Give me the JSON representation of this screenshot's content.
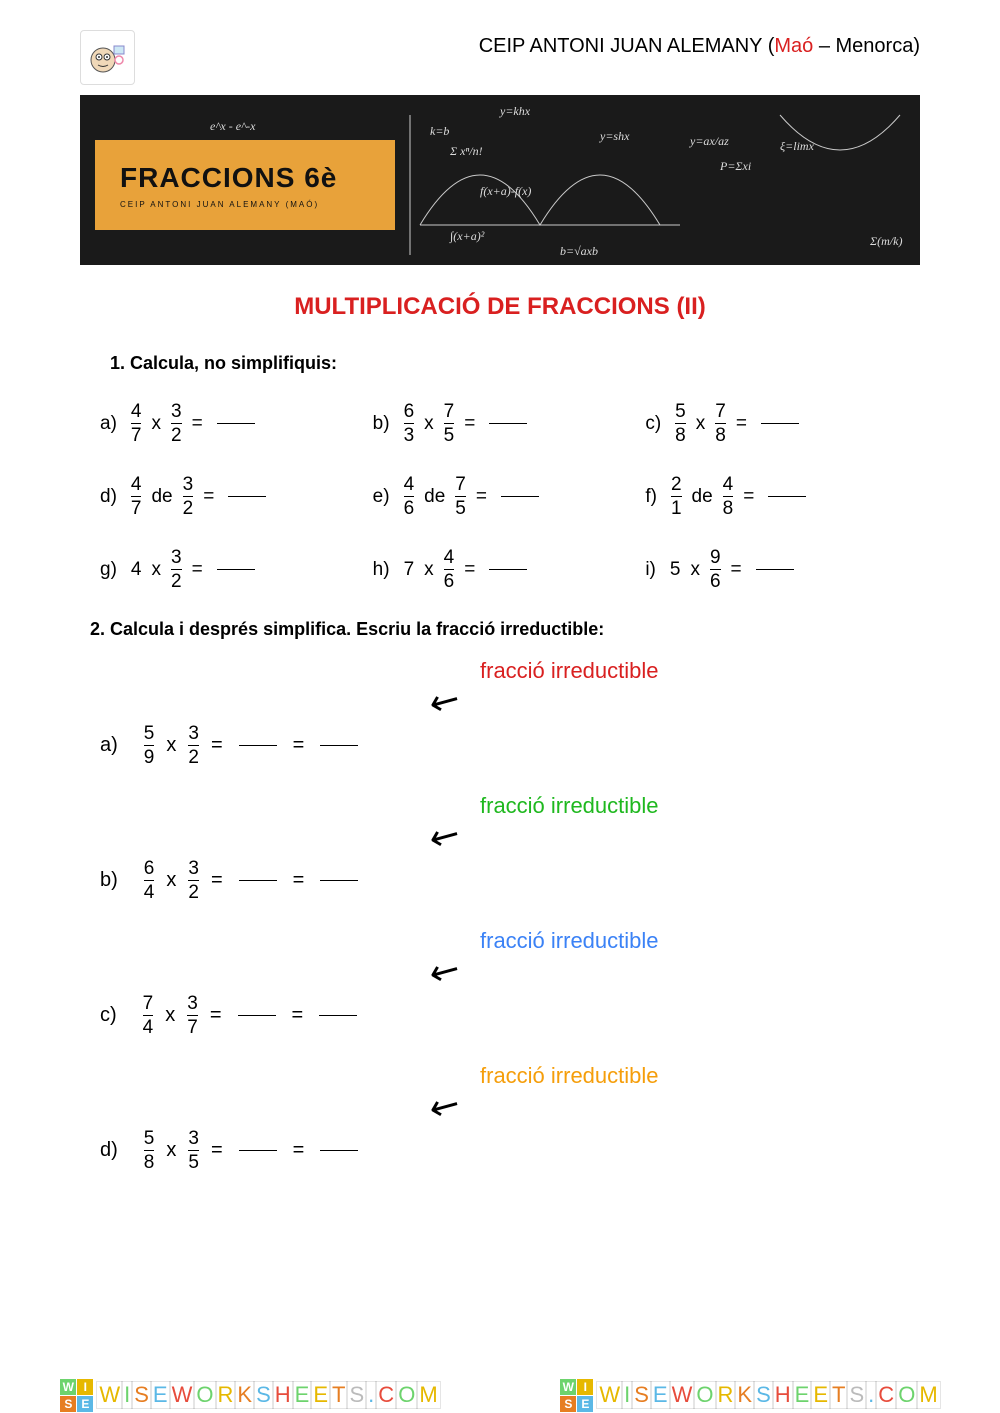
{
  "header": {
    "school_prefix": "CEIP ANTONI JUAN ALEMANY (",
    "school_location": "Maó",
    "school_suffix": " – Menorca)"
  },
  "banner": {
    "title": "FRACCIONS 6è",
    "subtitle": "CEIP ANTONI JUAN ALEMANY (MAÓ)",
    "bg_color": "#1a1a1a",
    "card_color": "#e8a23a",
    "formulas": [
      "y=khx",
      "y=shx",
      "e^x - e^-x",
      "Σ xⁿ/n!",
      "f(x+a)-f(x)",
      "∫(x+a)²",
      "ξ=limx",
      "Σ(m/k)",
      "b=√axb",
      "P=Σxi",
      "k=b",
      "y=ax/az"
    ]
  },
  "title": "MULTIPLICACIÓ DE FRACCIONS (II)",
  "section1": {
    "instruction": "1.  Calcula, no simplifiquis:",
    "exercises": [
      {
        "label": "a)",
        "a_num": "4",
        "a_den": "7",
        "op": "x",
        "b_num": "3",
        "b_den": "2"
      },
      {
        "label": "b)",
        "a_num": "6",
        "a_den": "3",
        "op": "x",
        "b_num": "7",
        "b_den": "5"
      },
      {
        "label": "c)",
        "a_num": "5",
        "a_den": "8",
        "op": "x",
        "b_num": "7",
        "b_den": "8"
      },
      {
        "label": "d)",
        "a_num": "4",
        "a_den": "7",
        "op": "de",
        "b_num": "3",
        "b_den": "2"
      },
      {
        "label": "e)",
        "a_num": "4",
        "a_den": "6",
        "op": "de",
        "b_num": "7",
        "b_den": "5"
      },
      {
        "label": "f)",
        "a_num": "2",
        "a_den": "1",
        "op": "de",
        "b_num": "4",
        "b_den": "8"
      },
      {
        "label": "g)",
        "a_whole": "4",
        "op": "x",
        "b_num": "3",
        "b_den": "2"
      },
      {
        "label": "h)",
        "a_whole": "7",
        "op": "x",
        "b_num": "4",
        "b_den": "6"
      },
      {
        "label": "i)",
        "a_whole": "5",
        "op": "x",
        "b_num": "9",
        "b_den": "6"
      }
    ]
  },
  "section2": {
    "instruction": "2. Calcula i després simplifica. Escriu la fracció irreductible:",
    "tag_text": "fracció irreductible",
    "tag_colors": [
      "#d92020",
      "#1fb81f",
      "#3b82f6",
      "#f59e0b"
    ],
    "exercises": [
      {
        "label": "a)",
        "a_num": "5",
        "a_den": "9",
        "b_num": "3",
        "b_den": "2"
      },
      {
        "label": "b)",
        "a_num": "6",
        "a_den": "4",
        "b_num": "3",
        "b_den": "2"
      },
      {
        "label": "c)",
        "a_num": "7",
        "a_den": "4",
        "b_num": "3",
        "b_den": "7"
      },
      {
        "label": "d)",
        "a_num": "5",
        "a_den": "8",
        "b_num": "3",
        "b_den": "5"
      }
    ]
  },
  "footer": {
    "text": "WISEWORKSHEETS.COM",
    "letter_colors": [
      "#e6b800",
      "#6dd36d",
      "#e67e22",
      "#5bb8e6",
      "#e74c3c",
      "#6dd36d",
      "#e6b800",
      "#e67e22",
      "#5bb8e6",
      "#e74c3c",
      "#6dd36d",
      "#e6b800",
      "#e67e22",
      "#bbb",
      "#5bb8e6",
      "#e74c3c",
      "#6dd36d",
      "#e6b800"
    ],
    "wi_colors": [
      "#6dd36d",
      "#e6b800",
      "#e67e22",
      "#5bb8e6"
    ]
  }
}
